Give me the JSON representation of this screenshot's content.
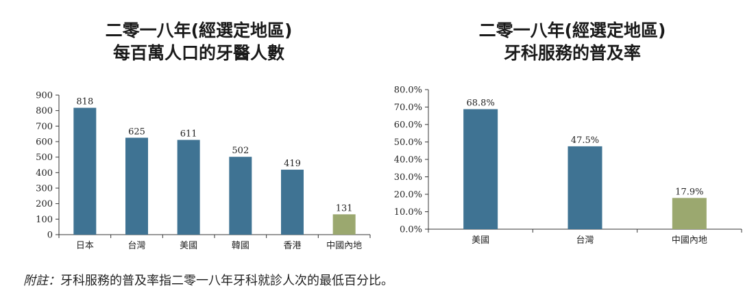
{
  "chart_data": [
    {
      "type": "bar",
      "title_line1": "二零一八年(經選定地區)",
      "title_line2": "每百萬人口的牙醫人數",
      "categories": [
        "日本",
        "台灣",
        "美國",
        "韓國",
        "香港",
        "中國內地"
      ],
      "values": [
        818,
        625,
        611,
        502,
        419,
        131
      ],
      "value_labels": [
        "818",
        "625",
        "611",
        "502",
        "419",
        "131"
      ],
      "colors": [
        "#3f7393",
        "#3f7393",
        "#3f7393",
        "#3f7393",
        "#3f7393",
        "#9ba86f"
      ],
      "yticks": [
        0,
        100,
        200,
        300,
        400,
        500,
        600,
        700,
        800,
        900
      ],
      "ytick_labels": [
        "0",
        "100",
        "200",
        "300",
        "400",
        "500",
        "600",
        "700",
        "800",
        "900"
      ],
      "ylim": [
        0,
        900
      ],
      "xlabel": "",
      "ylabel": "",
      "grid": false
    },
    {
      "type": "bar",
      "title_line1": "二零一八年(經選定地區)",
      "title_line2": "牙科服務的普及率",
      "categories": [
        "美國",
        "台灣",
        "中國內地"
      ],
      "values": [
        68.8,
        47.5,
        17.9
      ],
      "value_labels": [
        "68.8%",
        "47.5%",
        "17.9%"
      ],
      "colors": [
        "#3f7393",
        "#3f7393",
        "#9ba86f"
      ],
      "yticks": [
        0,
        10,
        20,
        30,
        40,
        50,
        60,
        70,
        80
      ],
      "ytick_labels": [
        "0.0%",
        "10.0%",
        "20.0%",
        "30.0%",
        "40.0%",
        "50.0%",
        "60.0%",
        "70.0%",
        "80.0%"
      ],
      "ylim": [
        0,
        80
      ],
      "xlabel": "",
      "ylabel": "",
      "grid": false
    }
  ],
  "footnote": {
    "prefix": "附註：",
    "text": "牙科服務的普及率指二零一八年牙科就診人次的最低百分比。"
  }
}
